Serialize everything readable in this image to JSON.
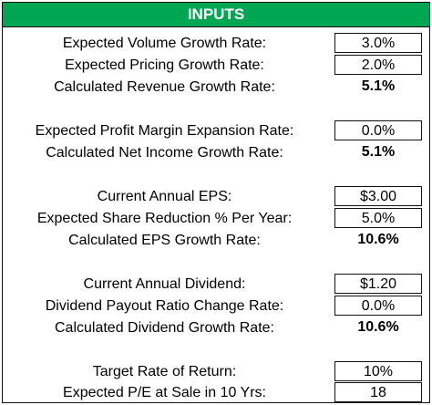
{
  "header": {
    "title": "INPUTS"
  },
  "rows": [
    {
      "label": "Expected Volume Growth Rate:",
      "value": "3.0%",
      "kind": "input"
    },
    {
      "label": "Expected Pricing Growth Rate:",
      "value": "2.0%",
      "kind": "input"
    },
    {
      "label": "Calculated Revenue Growth Rate:",
      "value": "5.1%",
      "kind": "calc"
    },
    {
      "label": "Expected Profit Margin Expansion Rate:",
      "value": "0.0%",
      "kind": "input"
    },
    {
      "label": "Calculated Net Income Growth Rate:",
      "value": "5.1%",
      "kind": "calc"
    },
    {
      "label": "Current Annual EPS:",
      "value": "$3.00",
      "kind": "input"
    },
    {
      "label": "Expected Share Reduction % Per Year:",
      "value": "5.0%",
      "kind": "input"
    },
    {
      "label": "Calculated EPS Growth Rate:",
      "value": "10.6%",
      "kind": "calc"
    },
    {
      "label": "Current Annual Dividend:",
      "value": "$1.20",
      "kind": "input"
    },
    {
      "label": "Dividend Payout Ratio Change Rate:",
      "value": "0.0%",
      "kind": "input"
    },
    {
      "label": "Calculated Dividend Growth Rate:",
      "value": "10.6%",
      "kind": "calc"
    },
    {
      "label": "Target Rate of Return:",
      "value": "10%",
      "kind": "input"
    },
    {
      "label": "Expected P/E at Sale in 10 Yrs:",
      "value": "18",
      "kind": "input"
    }
  ],
  "colors": {
    "header_bg": "#00a651",
    "header_text": "#ffffff"
  }
}
